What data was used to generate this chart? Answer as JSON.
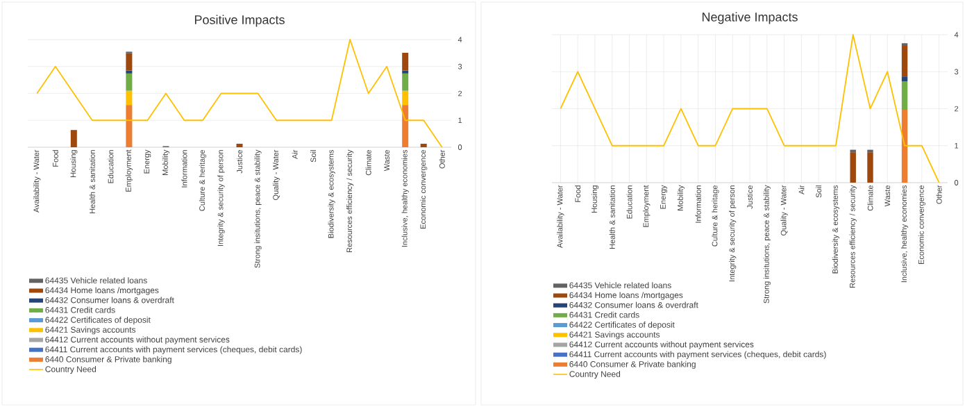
{
  "chart_data": [
    {
      "type": "bar",
      "title": "Positive Impacts",
      "stacked": true,
      "grid": "y",
      "legend": "bottom left",
      "categories": [
        "Availability - Water",
        "Food",
        "Housing",
        "Health & sanitation",
        "Education",
        "Employment",
        "Energy",
        "Mobility",
        "Information",
        "Culture & heritage",
        "Integrity & security of person",
        "Justice",
        "Strong insitutions, peace & stability",
        "Quality - Water",
        "Air",
        "Soil",
        "Biodiversity & ecosystems",
        "Resources efficiency / security",
        "Climate",
        "Waste",
        "Inclusive, healthy economies",
        "Economic convergence",
        "Other"
      ],
      "y2lim": [
        0,
        4
      ],
      "y2ticks": [
        0,
        1,
        2,
        3,
        4
      ],
      "series": [
        {
          "name": "6440 Consumer & Private banking",
          "axis": "y2",
          "color": "#ed7d31",
          "values": [
            null,
            null,
            null,
            null,
            null,
            1.57,
            null,
            null,
            null,
            null,
            null,
            null,
            null,
            null,
            null,
            null,
            null,
            null,
            null,
            null,
            1.57,
            null,
            null
          ]
        },
        {
          "name": "64411 Current accounts with payment services (cheques, debit cards)",
          "axis": "y2",
          "color": "#4472c4",
          "values": [
            null,
            null,
            null,
            null,
            null,
            null,
            null,
            null,
            null,
            null,
            null,
            null,
            null,
            null,
            null,
            null,
            null,
            null,
            null,
            null,
            null,
            null,
            null
          ]
        },
        {
          "name": "64412 Current accounts without payment services",
          "axis": "y2",
          "color": "#a5a5a5",
          "values": [
            null,
            null,
            null,
            null,
            null,
            null,
            null,
            null,
            null,
            null,
            null,
            null,
            null,
            null,
            null,
            null,
            null,
            null,
            null,
            null,
            null,
            null,
            null
          ]
        },
        {
          "name": "64421 Savings accounts",
          "axis": "y2",
          "color": "#ffc000",
          "values": [
            null,
            null,
            null,
            null,
            null,
            0.53,
            null,
            null,
            null,
            null,
            null,
            null,
            null,
            null,
            null,
            null,
            null,
            null,
            null,
            null,
            0.53,
            null,
            null
          ]
        },
        {
          "name": "64422 Certificates of deposit",
          "axis": "y2",
          "color": "#5b9bd5",
          "values": [
            null,
            null,
            null,
            null,
            null,
            null,
            null,
            null,
            null,
            null,
            null,
            null,
            null,
            null,
            null,
            null,
            null,
            null,
            null,
            null,
            null,
            null,
            null
          ]
        },
        {
          "name": "64431 Credit cards",
          "axis": "y2",
          "color": "#70ad47",
          "values": [
            null,
            null,
            null,
            null,
            null,
            0.64,
            null,
            null,
            null,
            null,
            null,
            null,
            null,
            null,
            null,
            null,
            null,
            null,
            null,
            null,
            0.64,
            null,
            null
          ]
        },
        {
          "name": "64432 Consumer loans & overdraft",
          "axis": "y2",
          "color": "#264478",
          "values": [
            null,
            null,
            null,
            null,
            null,
            0.11,
            null,
            null,
            null,
            null,
            null,
            null,
            null,
            null,
            null,
            null,
            null,
            null,
            null,
            null,
            0.11,
            null,
            null
          ]
        },
        {
          "name": "64434 Home loans /mortgages",
          "axis": "y2",
          "color": "#9e480e",
          "values": [
            null,
            null,
            0.64,
            null,
            null,
            0.64,
            null,
            null,
            null,
            null,
            null,
            0.13,
            null,
            null,
            null,
            null,
            null,
            null,
            null,
            null,
            0.66,
            0.13,
            null
          ]
        },
        {
          "name": "64435 Vehicle related loans",
          "axis": "y2",
          "color": "#636363",
          "values": [
            null,
            null,
            null,
            null,
            null,
            0.06,
            null,
            0.04,
            null,
            null,
            null,
            null,
            null,
            null,
            null,
            null,
            null,
            null,
            null,
            null,
            null,
            null,
            null
          ]
        },
        {
          "name": "Country Need",
          "type": "line",
          "axis": "y2",
          "color": "#ffc000",
          "values": [
            2,
            3,
            2,
            1,
            1,
            1,
            1,
            2,
            1,
            1,
            2,
            2,
            2,
            1,
            1,
            1,
            1,
            4,
            2,
            3,
            1,
            1,
            0
          ]
        }
      ]
    },
    {
      "type": "bar",
      "title": "Negative Impacts",
      "stacked": true,
      "grid": true,
      "legend": "bottom left",
      "categories": [
        "Availability - Water",
        "Food",
        "Housing",
        "Health & sanitation",
        "Education",
        "Employment",
        "Energy",
        "Mobility",
        "Information",
        "Culture & heritage",
        "Integrity & security of person",
        "Justice",
        "Strong insitutions, peace & stability",
        "Quality - Water",
        "Air",
        "Soil",
        "Biodiversity & ecosystems",
        "Resources efficiency / security",
        "Climate",
        "Waste",
        "Inclusive, healthy economies",
        "Economic convergence",
        "Other"
      ],
      "y2lim": [
        0,
        4
      ],
      "y2ticks": [
        0,
        1,
        2,
        3,
        4
      ],
      "series": [
        {
          "name": "6440 Consumer & Private banking",
          "axis": "y2",
          "color": "#ed7d31",
          "values": [
            null,
            null,
            null,
            null,
            null,
            null,
            null,
            null,
            null,
            null,
            null,
            null,
            null,
            null,
            null,
            null,
            null,
            null,
            null,
            null,
            1.97,
            null,
            null
          ]
        },
        {
          "name": "64411 Current accounts with payment services (cheques, debit cards)",
          "axis": "y2",
          "color": "#4472c4",
          "values": [
            null,
            null,
            null,
            null,
            null,
            null,
            null,
            null,
            null,
            null,
            null,
            null,
            null,
            null,
            null,
            null,
            null,
            null,
            null,
            null,
            null,
            null,
            null
          ]
        },
        {
          "name": "64412 Current accounts without payment services",
          "axis": "y2",
          "color": "#a5a5a5",
          "values": [
            null,
            null,
            null,
            null,
            null,
            null,
            null,
            null,
            null,
            null,
            null,
            null,
            null,
            null,
            null,
            null,
            null,
            null,
            null,
            null,
            null,
            null,
            null
          ]
        },
        {
          "name": "64421 Savings accounts",
          "axis": "y2",
          "color": "#ffc000",
          "values": [
            null,
            null,
            null,
            null,
            null,
            null,
            null,
            null,
            null,
            null,
            null,
            null,
            null,
            null,
            null,
            null,
            null,
            null,
            null,
            null,
            null,
            null,
            null
          ]
        },
        {
          "name": "64422 Certificates of deposit",
          "axis": "y2",
          "color": "#5b9bd5",
          "values": [
            null,
            null,
            null,
            null,
            null,
            null,
            null,
            null,
            null,
            null,
            null,
            null,
            null,
            null,
            null,
            null,
            null,
            null,
            null,
            null,
            null,
            null,
            null
          ]
        },
        {
          "name": "64431 Credit cards",
          "axis": "y2",
          "color": "#70ad47",
          "values": [
            null,
            null,
            null,
            null,
            null,
            null,
            null,
            null,
            null,
            null,
            null,
            null,
            null,
            null,
            null,
            null,
            null,
            null,
            null,
            null,
            0.77,
            null,
            null
          ]
        },
        {
          "name": "64432 Consumer loans & overdraft",
          "axis": "y2",
          "color": "#264478",
          "values": [
            null,
            null,
            null,
            null,
            null,
            null,
            null,
            null,
            null,
            null,
            null,
            null,
            null,
            null,
            null,
            null,
            null,
            null,
            null,
            null,
            0.13,
            null,
            null
          ]
        },
        {
          "name": "64434 Home loans /mortgages",
          "axis": "y2",
          "color": "#9e480e",
          "values": [
            null,
            null,
            null,
            null,
            null,
            null,
            null,
            null,
            null,
            null,
            null,
            null,
            null,
            null,
            null,
            null,
            null,
            0.81,
            0.81,
            null,
            0.83,
            null,
            null
          ]
        },
        {
          "name": "64435 Vehicle related loans",
          "axis": "y2",
          "color": "#636363",
          "values": [
            null,
            null,
            null,
            null,
            null,
            null,
            null,
            null,
            null,
            null,
            null,
            null,
            null,
            null,
            null,
            null,
            null,
            0.08,
            0.08,
            null,
            0.07,
            null,
            null
          ]
        },
        {
          "name": "Country Need",
          "type": "line",
          "axis": "y2",
          "color": "#ffc000",
          "values": [
            2,
            3,
            2,
            1,
            1,
            1,
            1,
            2,
            1,
            1,
            2,
            2,
            2,
            1,
            1,
            1,
            1,
            4,
            2,
            3,
            1,
            1,
            0
          ]
        }
      ]
    }
  ]
}
